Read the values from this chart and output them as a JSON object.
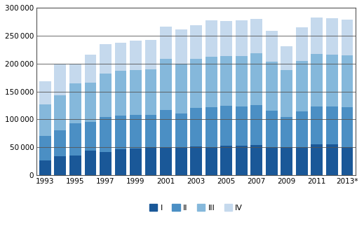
{
  "years": [
    1993,
    1994,
    1995,
    1996,
    1997,
    1998,
    1999,
    2000,
    2001,
    2002,
    2003,
    2004,
    2005,
    2006,
    2007,
    2008,
    2009,
    2010,
    2011,
    2012,
    2013
  ],
  "Q1": [
    26000,
    34000,
    36000,
    44000,
    42000,
    47000,
    48000,
    50000,
    49000,
    49000,
    52000,
    51000,
    53000,
    53000,
    54000,
    50000,
    50000,
    51000,
    55000,
    56000,
    51000
  ],
  "Q2": [
    44000,
    47000,
    57000,
    51000,
    62000,
    60000,
    60000,
    58000,
    68000,
    62000,
    69000,
    71000,
    71000,
    70000,
    72000,
    65000,
    54000,
    63000,
    68000,
    67000,
    71000
  ],
  "Q3": [
    57000,
    62000,
    72000,
    71000,
    78000,
    80000,
    80000,
    82000,
    92000,
    88000,
    88000,
    90000,
    90000,
    91000,
    92000,
    88000,
    84000,
    91000,
    94000,
    93000,
    93000
  ],
  "Q4": [
    41000,
    56000,
    35000,
    50000,
    53000,
    50000,
    53000,
    52000,
    57000,
    62000,
    60000,
    65000,
    62000,
    63000,
    62000,
    56000,
    43000,
    60000,
    65000,
    65000,
    63000
  ],
  "colors": [
    "#1a5898",
    "#4b8fc4",
    "#85b8db",
    "#c5d9ed"
  ],
  "ylim": [
    0,
    300000
  ],
  "yticks": [
    0,
    50000,
    100000,
    150000,
    200000,
    250000,
    300000
  ],
  "odd_year_labels": [
    "1993",
    "1995",
    "1997",
    "1999",
    "2001",
    "2003",
    "2005",
    "2007",
    "2009",
    "2011",
    "2013*"
  ],
  "background_color": "#ffffff",
  "grid_color": "#444444",
  "bar_edge_color": "none"
}
